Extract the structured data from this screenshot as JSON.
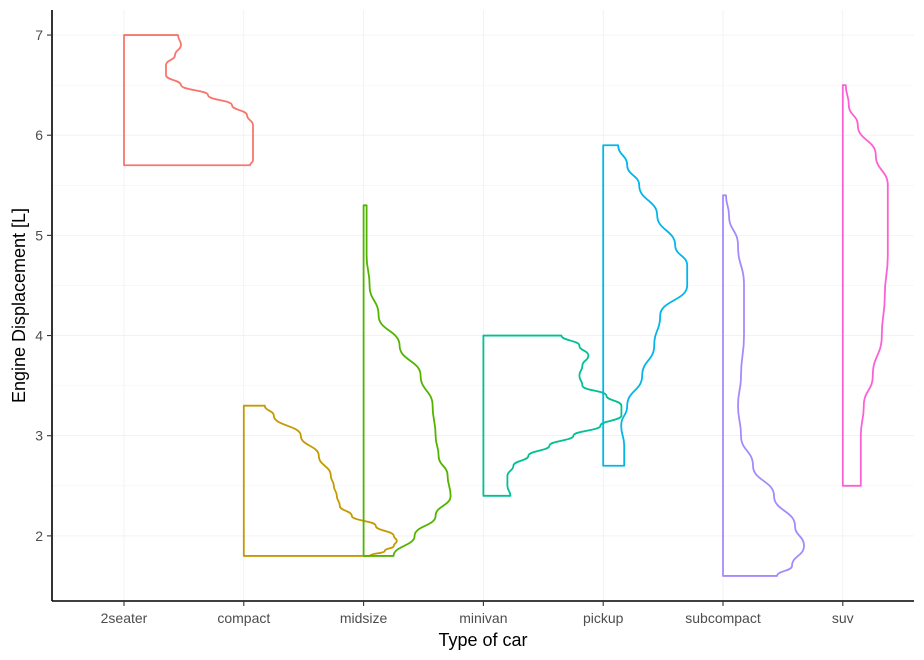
{
  "chart_data": {
    "type": "half-violin",
    "xlabel": "Type of car",
    "ylabel": "Engine Displacement [L]",
    "categories": [
      "2seater",
      "compact",
      "midsize",
      "minivan",
      "pickup",
      "subcompact",
      "suv"
    ],
    "ylim": [
      1.35,
      7.25
    ],
    "yticks": [
      2,
      3,
      4,
      5,
      6,
      7
    ],
    "grid": true,
    "legend": "none",
    "series": [
      {
        "category": "2seater",
        "color": "#F8766D",
        "min": 5.7,
        "max": 7.0,
        "density": [
          [
            5.7,
            0.42
          ],
          [
            5.75,
            0.43
          ],
          [
            5.8,
            0.43
          ],
          [
            6.0,
            0.43
          ],
          [
            6.1,
            0.43
          ],
          [
            6.2,
            0.41
          ],
          [
            6.3,
            0.36
          ],
          [
            6.4,
            0.28
          ],
          [
            6.5,
            0.19
          ],
          [
            6.6,
            0.14
          ],
          [
            6.7,
            0.14
          ],
          [
            6.8,
            0.17
          ],
          [
            6.9,
            0.19
          ],
          [
            7.0,
            0.18
          ]
        ]
      },
      {
        "category": "compact",
        "color": "#C49A00",
        "min": 1.8,
        "max": 3.3,
        "density": [
          [
            1.8,
            0.42
          ],
          [
            1.85,
            0.47
          ],
          [
            1.9,
            0.5
          ],
          [
            1.95,
            0.51
          ],
          [
            2.0,
            0.5
          ],
          [
            2.1,
            0.44
          ],
          [
            2.2,
            0.36
          ],
          [
            2.3,
            0.32
          ],
          [
            2.4,
            0.31
          ],
          [
            2.5,
            0.3
          ],
          [
            2.6,
            0.29
          ],
          [
            2.8,
            0.25
          ],
          [
            3.0,
            0.19
          ],
          [
            3.2,
            0.1
          ],
          [
            3.3,
            0.07
          ]
        ]
      },
      {
        "category": "midsize",
        "color": "#53B400",
        "min": 1.8,
        "max": 5.3,
        "density": [
          [
            1.8,
            0.1
          ],
          [
            2.0,
            0.17
          ],
          [
            2.2,
            0.24
          ],
          [
            2.4,
            0.29
          ],
          [
            2.6,
            0.28
          ],
          [
            2.8,
            0.25
          ],
          [
            3.0,
            0.24
          ],
          [
            3.3,
            0.23
          ],
          [
            3.6,
            0.19
          ],
          [
            3.9,
            0.12
          ],
          [
            4.2,
            0.05
          ],
          [
            4.5,
            0.02
          ],
          [
            4.8,
            0.01
          ],
          [
            5.0,
            0.01
          ],
          [
            5.3,
            0.01
          ]
        ]
      },
      {
        "category": "minivan",
        "color": "#00C094",
        "min": 2.4,
        "max": 4.0,
        "density": [
          [
            2.4,
            0.09
          ],
          [
            2.5,
            0.08
          ],
          [
            2.6,
            0.08
          ],
          [
            2.7,
            0.1
          ],
          [
            2.8,
            0.15
          ],
          [
            2.9,
            0.22
          ],
          [
            3.0,
            0.3
          ],
          [
            3.1,
            0.39
          ],
          [
            3.2,
            0.46
          ],
          [
            3.3,
            0.46
          ],
          [
            3.4,
            0.41
          ],
          [
            3.5,
            0.33
          ],
          [
            3.6,
            0.32
          ],
          [
            3.7,
            0.33
          ],
          [
            3.8,
            0.35
          ],
          [
            3.9,
            0.32
          ],
          [
            4.0,
            0.26
          ]
        ]
      },
      {
        "category": "pickup",
        "color": "#00B6EB",
        "min": 2.7,
        "max": 5.9,
        "density": [
          [
            2.7,
            0.07
          ],
          [
            2.9,
            0.07
          ],
          [
            3.1,
            0.06
          ],
          [
            3.3,
            0.08
          ],
          [
            3.6,
            0.13
          ],
          [
            3.9,
            0.17
          ],
          [
            4.2,
            0.19
          ],
          [
            4.5,
            0.28
          ],
          [
            4.7,
            0.28
          ],
          [
            4.9,
            0.24
          ],
          [
            5.2,
            0.18
          ],
          [
            5.5,
            0.12
          ],
          [
            5.7,
            0.08
          ],
          [
            5.9,
            0.05
          ]
        ]
      },
      {
        "category": "subcompact",
        "color": "#A58AFF",
        "min": 1.6,
        "max": 5.4,
        "density": [
          [
            1.6,
            0.18
          ],
          [
            1.7,
            0.23
          ],
          [
            1.9,
            0.27
          ],
          [
            2.1,
            0.24
          ],
          [
            2.4,
            0.17
          ],
          [
            2.7,
            0.1
          ],
          [
            3.0,
            0.06
          ],
          [
            3.3,
            0.05
          ],
          [
            3.6,
            0.06
          ],
          [
            4.0,
            0.07
          ],
          [
            4.5,
            0.07
          ],
          [
            4.9,
            0.05
          ],
          [
            5.2,
            0.02
          ],
          [
            5.4,
            0.01
          ]
        ]
      },
      {
        "category": "suv",
        "color": "#FB61D7",
        "min": 2.5,
        "max": 6.5,
        "density": [
          [
            2.5,
            0.06
          ],
          [
            2.7,
            0.06
          ],
          [
            3.0,
            0.06
          ],
          [
            3.3,
            0.07
          ],
          [
            3.6,
            0.1
          ],
          [
            4.0,
            0.13
          ],
          [
            4.4,
            0.14
          ],
          [
            4.8,
            0.15
          ],
          [
            5.2,
            0.15
          ],
          [
            5.5,
            0.15
          ],
          [
            5.8,
            0.11
          ],
          [
            6.1,
            0.05
          ],
          [
            6.3,
            0.02
          ],
          [
            6.5,
            0.01
          ]
        ]
      }
    ]
  }
}
